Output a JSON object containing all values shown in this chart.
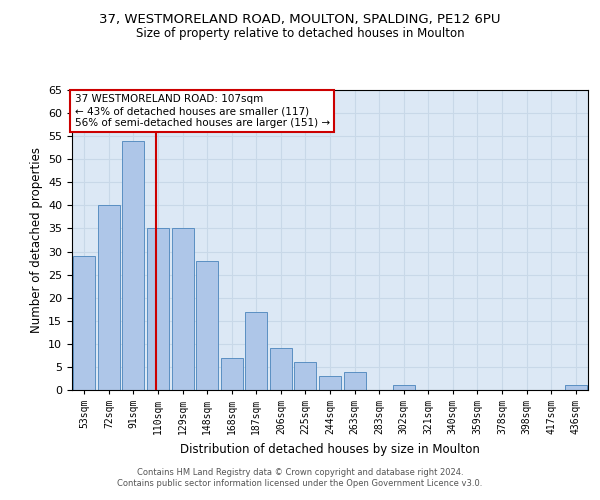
{
  "title1": "37, WESTMORELAND ROAD, MOULTON, SPALDING, PE12 6PU",
  "title2": "Size of property relative to detached houses in Moulton",
  "xlabel": "Distribution of detached houses by size in Moulton",
  "ylabel": "Number of detached properties",
  "categories": [
    "53sqm",
    "72sqm",
    "91sqm",
    "110sqm",
    "129sqm",
    "148sqm",
    "168sqm",
    "187sqm",
    "206sqm",
    "225sqm",
    "244sqm",
    "263sqm",
    "283sqm",
    "302sqm",
    "321sqm",
    "340sqm",
    "359sqm",
    "378sqm",
    "398sqm",
    "417sqm",
    "436sqm"
  ],
  "values": [
    29,
    40,
    54,
    35,
    35,
    28,
    7,
    17,
    9,
    6,
    3,
    4,
    0,
    1,
    0,
    0,
    0,
    0,
    0,
    0,
    1
  ],
  "bar_color": "#aec6e8",
  "bar_edge_color": "#5a8fc2",
  "property_line_x": 2.925,
  "ylim": [
    0,
    65
  ],
  "yticks": [
    0,
    5,
    10,
    15,
    20,
    25,
    30,
    35,
    40,
    45,
    50,
    55,
    60,
    65
  ],
  "annotation_line1": "37 WESTMORELAND ROAD: 107sqm",
  "annotation_line2": "← 43% of detached houses are smaller (117)",
  "annotation_line3": "56% of semi-detached houses are larger (151) →",
  "vline_color": "#cc0000",
  "annotation_box_color": "#ffffff",
  "annotation_box_edge": "#cc0000",
  "grid_color": "#c8d8e8",
  "bg_color": "#dce8f5",
  "footer1": "Contains HM Land Registry data © Crown copyright and database right 2024.",
  "footer2": "Contains public sector information licensed under the Open Government Licence v3.0."
}
